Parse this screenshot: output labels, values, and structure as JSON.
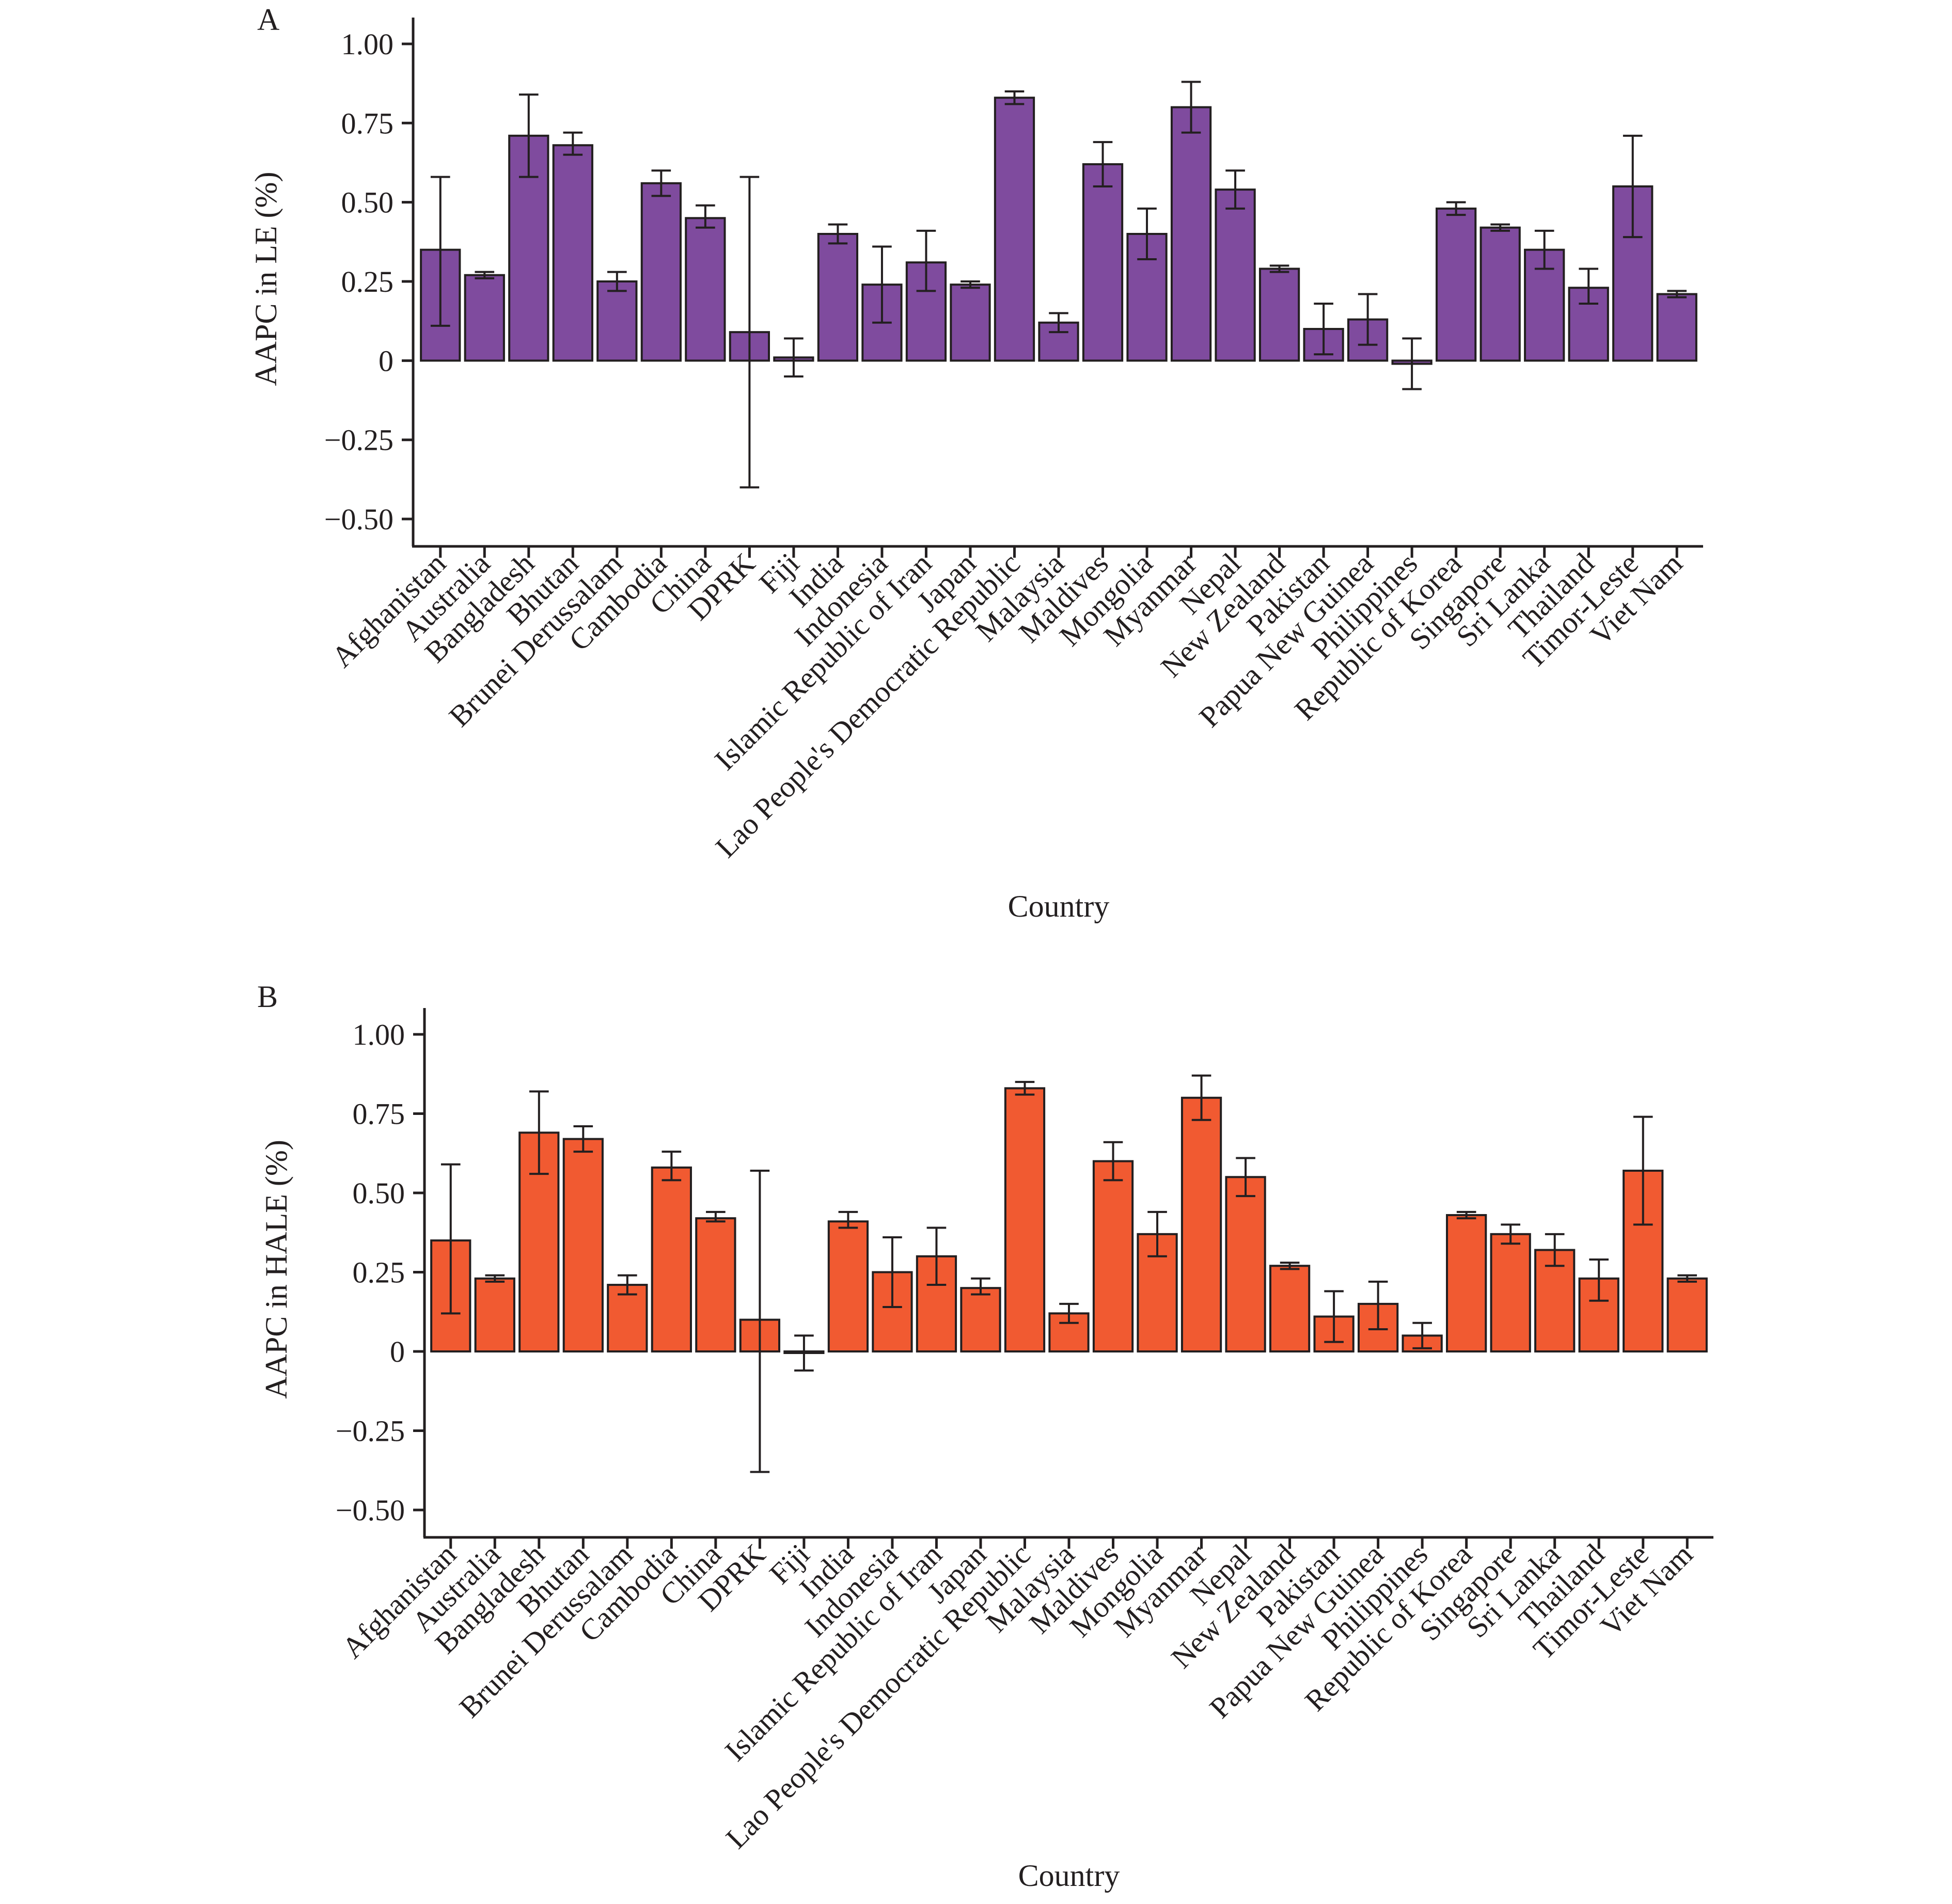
{
  "chart_data": [
    {
      "type": "bar",
      "panel": "A",
      "ylabel": "AAPC in LE (%)",
      "xlabel": "Country",
      "ylim": [
        -0.5,
        1.0
      ],
      "yticks": [
        "1.00",
        "0.75",
        "0.50",
        "0.25",
        "0",
        "−0.25",
        "−0.50"
      ],
      "ytick_values": [
        1.0,
        0.75,
        0.5,
        0.25,
        0,
        -0.25,
        -0.5
      ],
      "bar_color": "#7f4b9e",
      "categories": [
        "Afghanistan",
        "Australia",
        "Bangladesh",
        "Bhutan",
        "Brunei Derussalam",
        "Cambodia",
        "China",
        "DPRK",
        "Fiji",
        "India",
        "Indonesia",
        "Islamic Republic of Iran",
        "Japan",
        "Lao People's Democratic Republic",
        "Malaysia",
        "Maldives",
        "Mongolia",
        "Myanmar",
        "Nepal",
        "New Zealand",
        "Pakistan",
        "Papua New Guinea",
        "Philippines",
        "Republic of Korea",
        "Singapore",
        "Sri Lanka",
        "Thailand",
        "Timor-Leste",
        "Viet Nam"
      ],
      "values": [
        0.35,
        0.27,
        0.71,
        0.68,
        0.25,
        0.56,
        0.45,
        0.09,
        0.01,
        0.4,
        0.24,
        0.31,
        0.24,
        0.83,
        0.12,
        0.62,
        0.4,
        0.8,
        0.54,
        0.29,
        0.1,
        0.13,
        -0.01,
        0.48,
        0.42,
        0.35,
        0.23,
        0.55,
        0.21
      ],
      "lower": [
        0.11,
        0.26,
        0.58,
        0.65,
        0.22,
        0.52,
        0.42,
        -0.4,
        -0.05,
        0.37,
        0.12,
        0.22,
        0.23,
        0.81,
        0.09,
        0.55,
        0.32,
        0.72,
        0.48,
        0.28,
        0.02,
        0.05,
        -0.09,
        0.46,
        0.41,
        0.29,
        0.18,
        0.39,
        0.2
      ],
      "upper": [
        0.58,
        0.28,
        0.84,
        0.72,
        0.28,
        0.6,
        0.49,
        0.58,
        0.07,
        0.43,
        0.36,
        0.41,
        0.25,
        0.85,
        0.15,
        0.69,
        0.48,
        0.88,
        0.6,
        0.3,
        0.18,
        0.21,
        0.07,
        0.5,
        0.43,
        0.41,
        0.29,
        0.71,
        0.22
      ]
    },
    {
      "type": "bar",
      "panel": "B",
      "ylabel": "AAPC in HALE (%)",
      "xlabel": "Country",
      "ylim": [
        -0.5,
        1.0
      ],
      "yticks": [
        "1.00",
        "0.75",
        "0.50",
        "0.25",
        "0",
        "−0.25",
        "−0.50"
      ],
      "ytick_values": [
        1.0,
        0.75,
        0.5,
        0.25,
        0,
        -0.25,
        -0.5
      ],
      "bar_color": "#f15a31",
      "categories": [
        "Afghanistan",
        "Australia",
        "Bangladesh",
        "Bhutan",
        "Brunei Derussalam",
        "Cambodia",
        "China",
        "DPRK",
        "Fiji",
        "India",
        "Indonesia",
        "Islamic Republic of Iran",
        "Japan",
        "Lao People's Democratic Republic",
        "Malaysia",
        "Maldives",
        "Mongolia",
        "Myanmar",
        "Nepal",
        "New Zealand",
        "Pakistan",
        "Papua New Guinea",
        "Philippines",
        "Republic of Korea",
        "Singapore",
        "Sri Lanka",
        "Thailand",
        "Timor-Leste",
        "Viet Nam"
      ],
      "values": [
        0.35,
        0.23,
        0.69,
        0.67,
        0.21,
        0.58,
        0.42,
        0.1,
        0.0,
        0.41,
        0.25,
        0.3,
        0.2,
        0.83,
        0.12,
        0.6,
        0.37,
        0.8,
        0.55,
        0.27,
        0.11,
        0.15,
        0.05,
        0.43,
        0.37,
        0.32,
        0.23,
        0.57,
        0.23
      ],
      "lower": [
        0.12,
        0.22,
        0.56,
        0.63,
        0.18,
        0.54,
        0.41,
        -0.38,
        -0.06,
        0.39,
        0.14,
        0.21,
        0.18,
        0.81,
        0.09,
        0.54,
        0.3,
        0.73,
        0.49,
        0.26,
        0.03,
        0.07,
        0.01,
        0.42,
        0.34,
        0.27,
        0.16,
        0.4,
        0.22
      ],
      "upper": [
        0.59,
        0.24,
        0.82,
        0.71,
        0.24,
        0.63,
        0.44,
        0.57,
        0.05,
        0.44,
        0.36,
        0.39,
        0.23,
        0.85,
        0.15,
        0.66,
        0.44,
        0.87,
        0.61,
        0.28,
        0.19,
        0.22,
        0.09,
        0.44,
        0.4,
        0.37,
        0.29,
        0.74,
        0.24
      ]
    }
  ]
}
